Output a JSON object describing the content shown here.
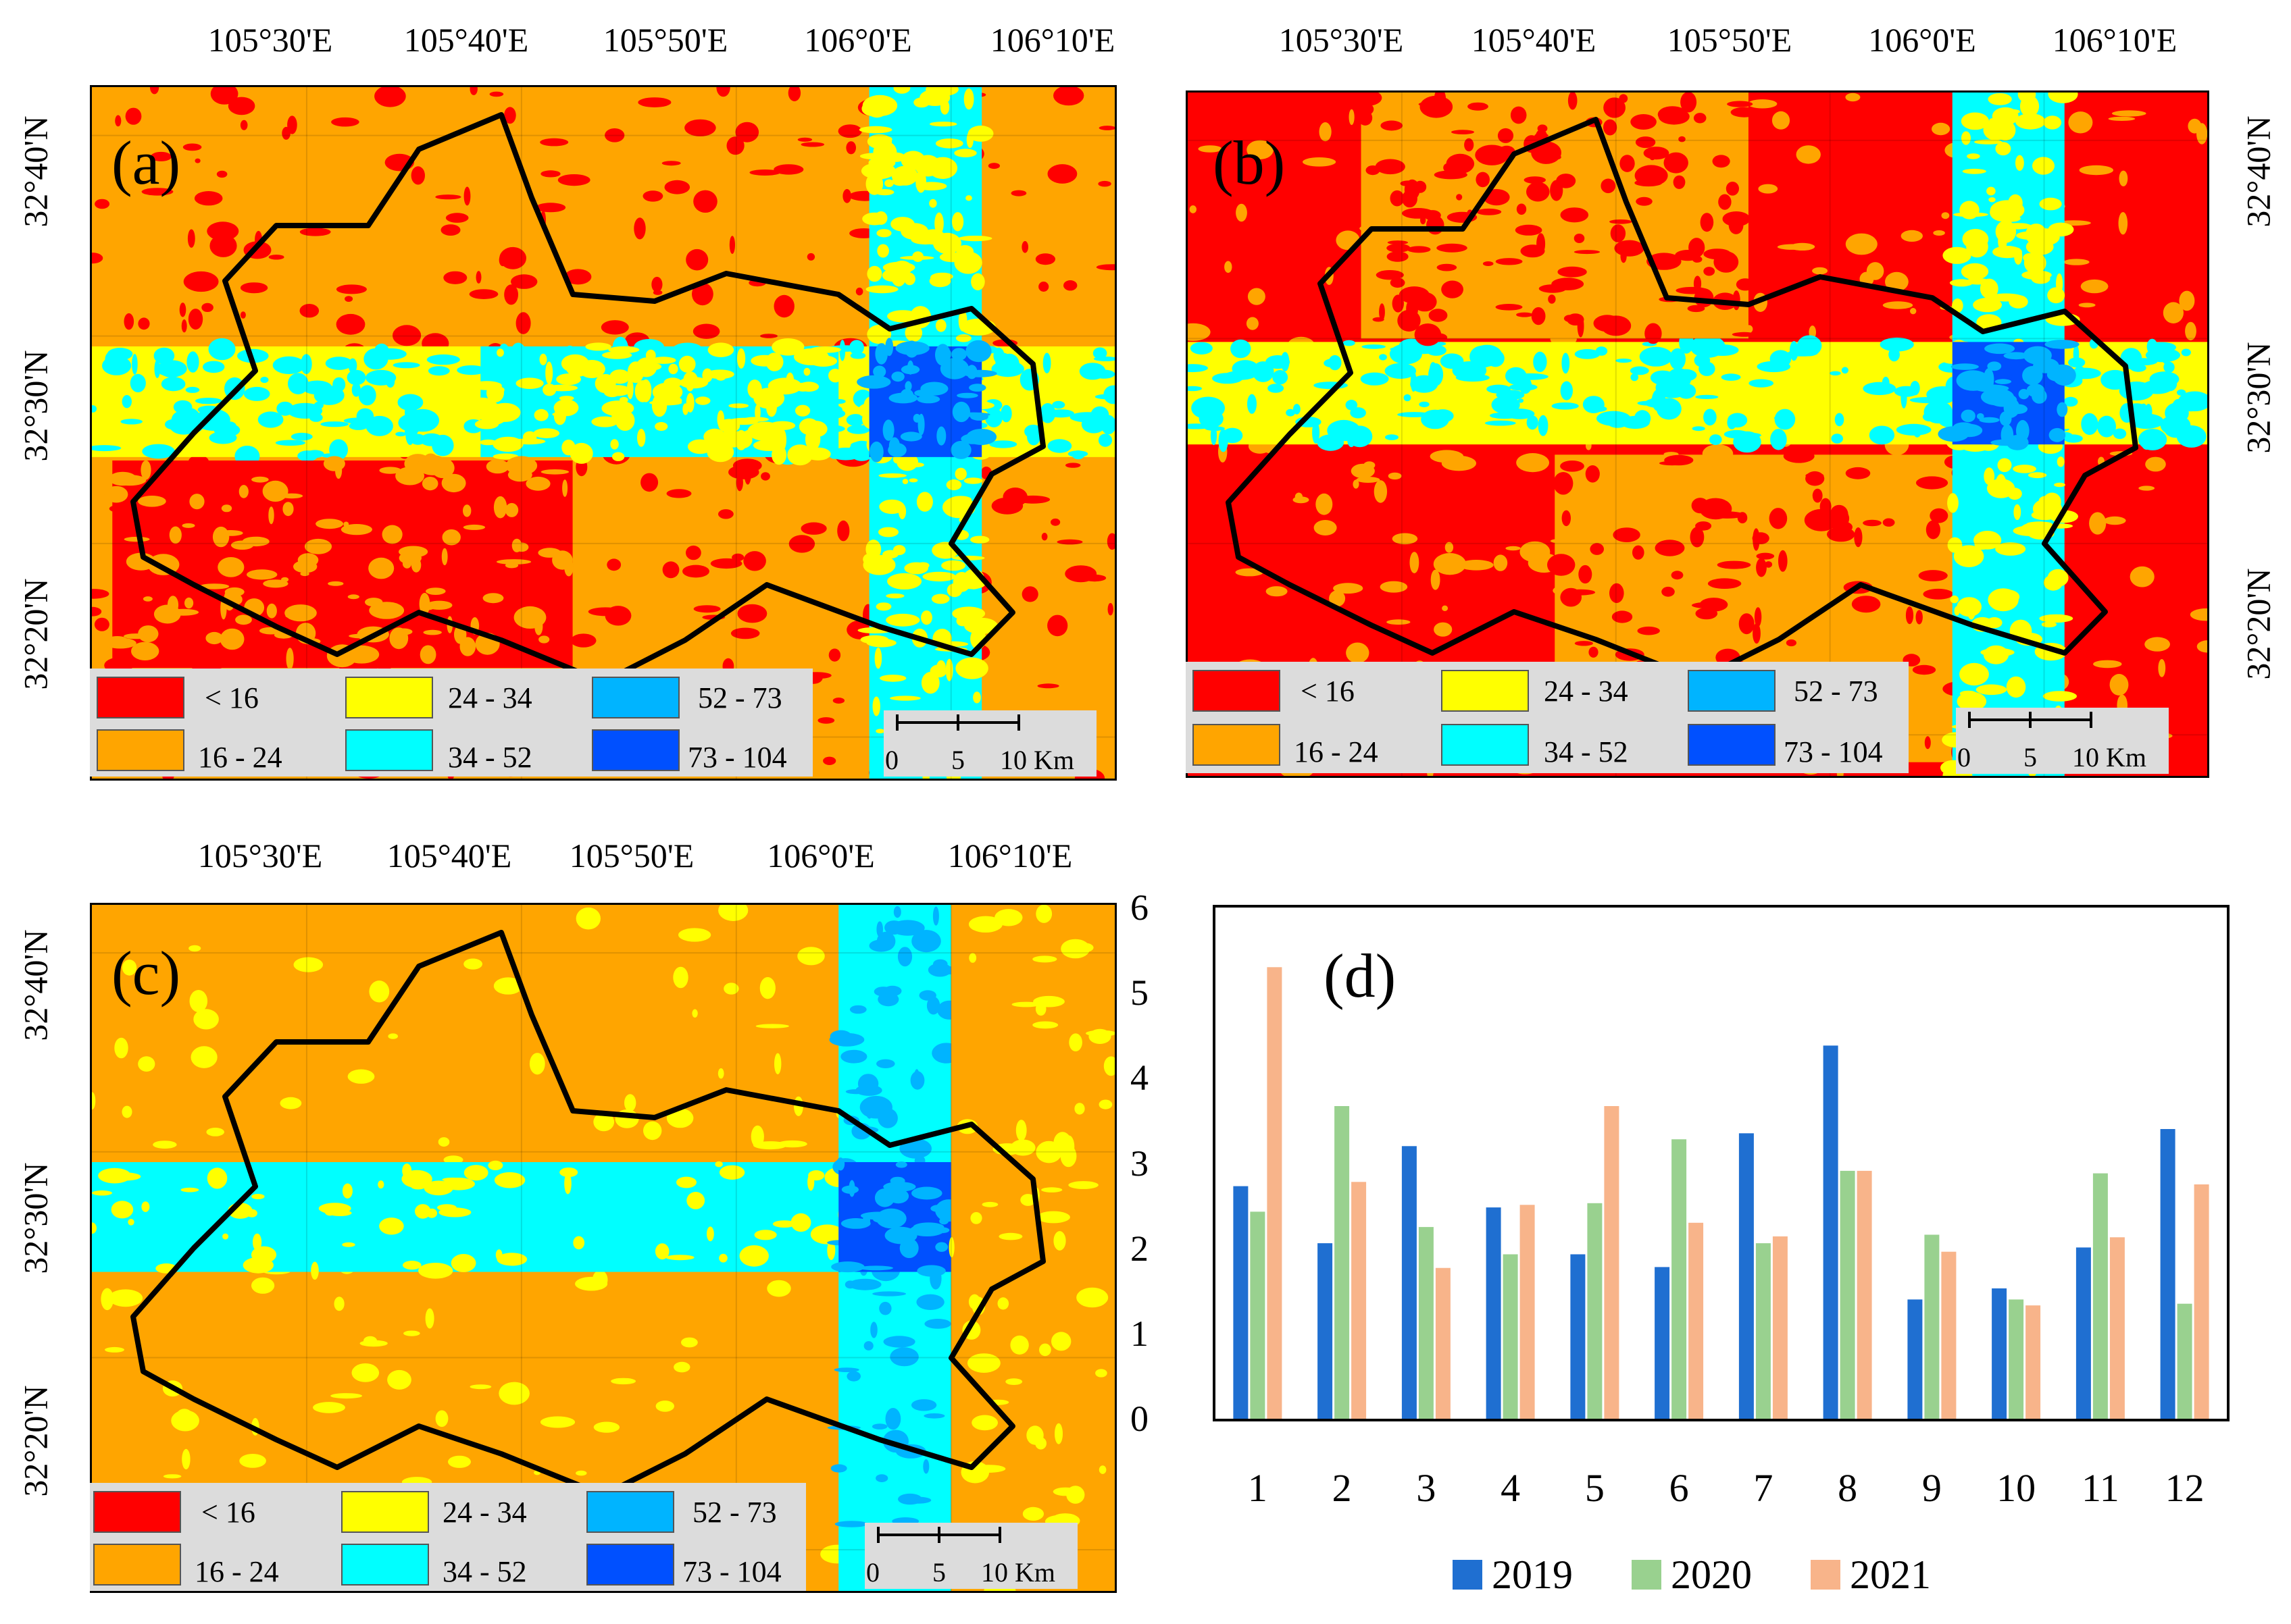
{
  "palette": {
    "c1": "#ff0000",
    "c2": "#ffa500",
    "c3": "#ffff00",
    "c4": "#00ffff",
    "c5": "#00b4ff",
    "c6": "#0050ff"
  },
  "map_legend": [
    {
      "label": "< 16",
      "color": "#ff0000"
    },
    {
      "label": "16 - 24",
      "color": "#ffa500"
    },
    {
      "label": "24 - 34",
      "color": "#ffff00"
    },
    {
      "label": "34 - 52",
      "color": "#00ffff"
    },
    {
      "label": "52 - 73",
      "color": "#00b4ff"
    },
    {
      "label": "73 - 104",
      "color": "#0050ff"
    }
  ],
  "scale_bar": {
    "t0": "0",
    "t1": "5",
    "t2": "10 Km"
  },
  "lon_labels": [
    "105°30'E",
    "105°40'E",
    "105°50'E",
    "106°0'E",
    "106°10'E"
  ],
  "lat_labels": [
    "32°40'N",
    "32°30'N",
    "32°20'N"
  ],
  "panels": {
    "a": {
      "label": "(a)"
    },
    "b": {
      "label": "(b)"
    },
    "c": {
      "label": "(c)"
    },
    "d": {
      "label": "(d)"
    }
  },
  "chart_data": {
    "type": "bar",
    "categories": [
      "1",
      "2",
      "3",
      "4",
      "5",
      "6",
      "7",
      "8",
      "9",
      "10",
      "11",
      "12"
    ],
    "series": [
      {
        "name": "2019",
        "color": "#1f6fd1",
        "values": [
          2.73,
          2.06,
          3.2,
          2.48,
          1.93,
          1.78,
          3.35,
          4.38,
          1.4,
          1.53,
          2.01,
          3.4
        ]
      },
      {
        "name": "2020",
        "color": "#99d18f",
        "values": [
          2.43,
          3.67,
          2.25,
          1.93,
          2.53,
          3.28,
          2.06,
          2.91,
          2.16,
          1.4,
          2.88,
          1.35
        ]
      },
      {
        "name": "2021",
        "color": "#f8b48a",
        "values": [
          5.3,
          2.78,
          1.77,
          2.51,
          3.67,
          2.3,
          2.14,
          2.91,
          1.96,
          1.33,
          2.13,
          2.75
        ]
      }
    ],
    "ylim": [
      0,
      6
    ],
    "yticks": [
      "0",
      "1",
      "2",
      "3",
      "4",
      "5",
      "6"
    ],
    "title": "",
    "xlabel": "",
    "ylabel": ""
  }
}
